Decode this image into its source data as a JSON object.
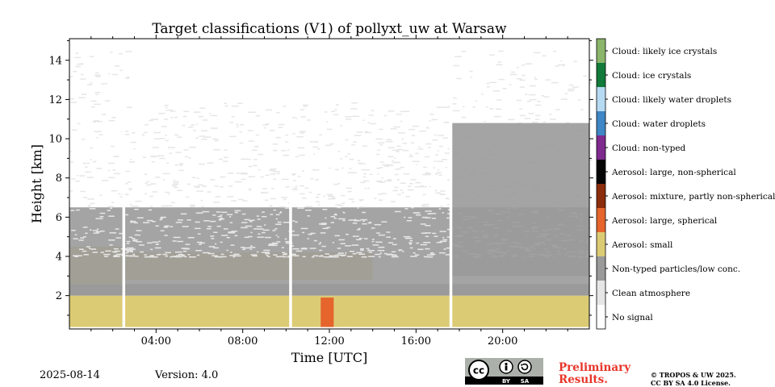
{
  "chart_data": {
    "type": "heatmap",
    "title": "Target classifications (V1) of pollyxt_uw at Warsaw",
    "xlabel": "Time [UTC]",
    "ylabel": "Height [km]",
    "xlim": [
      0,
      24
    ],
    "ylim": [
      0.3,
      15.1
    ],
    "x_ticks": [
      4,
      8,
      12,
      16,
      20
    ],
    "x_tick_labels": [
      "04:00",
      "08:00",
      "12:00",
      "16:00",
      "20:00"
    ],
    "y_ticks": [
      2,
      4,
      6,
      8,
      10,
      12,
      14
    ],
    "y_tick_labels": [
      "2",
      "4",
      "6",
      "8",
      "10",
      "12",
      "14"
    ],
    "classes": [
      {
        "id": 11,
        "label": "Cloud: likely ice crystals",
        "color": "#8ab56a"
      },
      {
        "id": 10,
        "label": "Cloud: ice crystals",
        "color": "#127a3a"
      },
      {
        "id": 9,
        "label": "Cloud: likely water droplets",
        "color": "#b6daf2"
      },
      {
        "id": 8,
        "label": "Cloud: water droplets",
        "color": "#3e86c5"
      },
      {
        "id": 7,
        "label": "Cloud: non-typed",
        "color": "#7e2a8e"
      },
      {
        "id": 6,
        "label": "Aerosol: large, non-spherical",
        "color": "#050505"
      },
      {
        "id": 5,
        "label": "Aerosol: mixture, partly non-spherical",
        "color": "#8b2c0c"
      },
      {
        "id": 4,
        "label": "Aerosol: large, spherical",
        "color": "#e5652c"
      },
      {
        "id": 3,
        "label": "Aerosol: small",
        "color": "#dccb75"
      },
      {
        "id": 2,
        "label": "Non-typed particles/low conc.",
        "color": "#9a9a9a"
      },
      {
        "id": 1,
        "label": "Clean atmosphere",
        "color": "#e6e6e6"
      },
      {
        "id": 0,
        "label": "No signal",
        "color": "#ffffff"
      }
    ],
    "data_gaps_hours": [
      2.5,
      10.2,
      17.6
    ],
    "layers": [
      {
        "class": "Aerosol: small",
        "from_h": 0,
        "to_h": 24,
        "bottom_km": 0.4,
        "top_km": 2.0
      },
      {
        "class": "Non-typed particles/low conc.",
        "from_h": 0,
        "to_h": 24,
        "bottom_km": 2.0,
        "top_km": 2.6
      },
      {
        "class": "Aerosol: small",
        "from_h": 0,
        "to_h": 2.5,
        "bottom_km": 2.6,
        "top_km": 4.5
      },
      {
        "class": "Aerosol: small",
        "from_h": 2.5,
        "to_h": 14,
        "bottom_km": 2.8,
        "top_km": 4.2
      },
      {
        "class": "Non-typed particles/low conc.",
        "from_h": 0,
        "to_h": 24,
        "bottom_km": 2.6,
        "top_km": 6.5
      },
      {
        "class": "Clean atmosphere",
        "from_h": 0,
        "to_h": 24,
        "bottom_km": 4.0,
        "top_km": 14.5
      },
      {
        "class": "Non-typed particles/low conc.",
        "from_h": 17.6,
        "to_h": 24,
        "bottom_km": 3.0,
        "top_km": 10.8
      },
      {
        "class": "Aerosol: large, spherical",
        "from_h": 11.6,
        "to_h": 12.2,
        "bottom_km": 0.4,
        "top_km": 1.9
      }
    ],
    "grid": false,
    "legend_position": "right colorbar"
  },
  "footer": {
    "date": "2025-08-14",
    "version": "Version: 4.0",
    "preliminary_line1": "Preliminary",
    "preliminary_line2": "Results.",
    "copyright_line1": "© TROPOS & UW 2025.",
    "copyright_line2": "CC BY SA 4.0 License.",
    "cc_badge": {
      "cc": "cc",
      "by": "BY",
      "sa": "SA"
    }
  }
}
